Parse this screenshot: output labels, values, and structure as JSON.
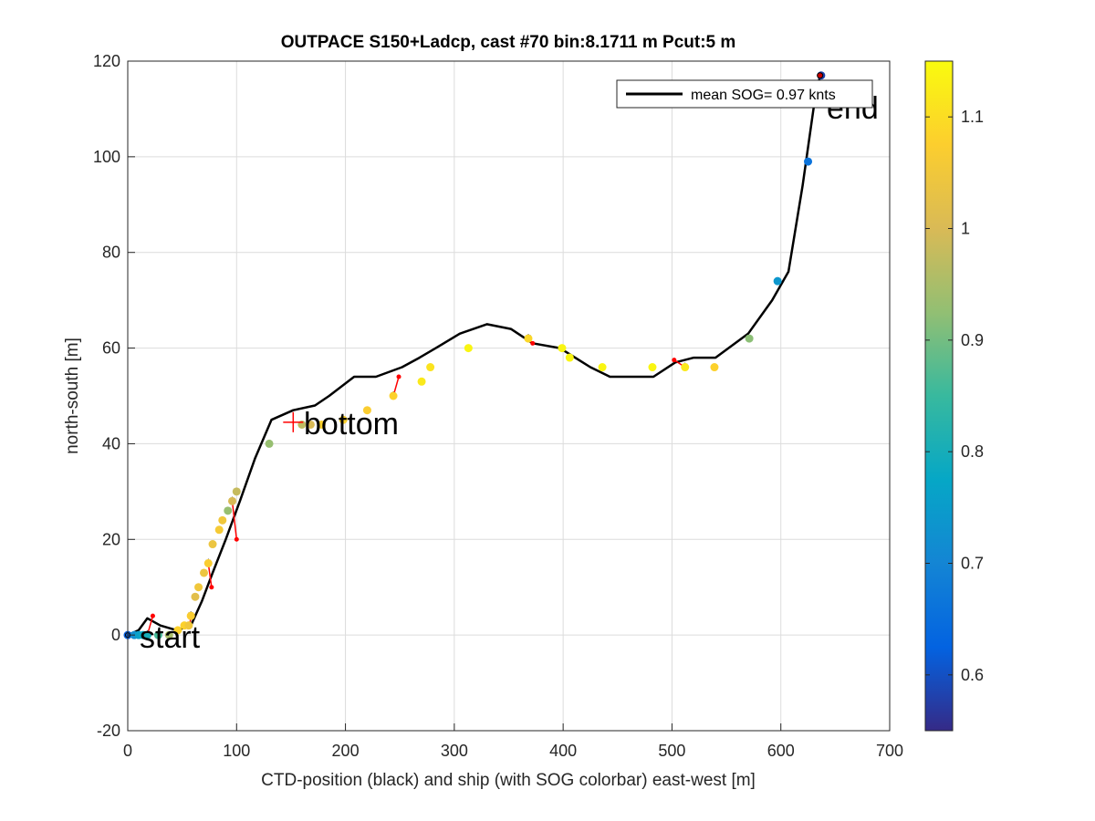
{
  "chart_data": {
    "type": "line",
    "title": "OUTPACE S150+Ladcp, cast #70 bin:8.1711 m  Pcut:5 m",
    "xlabel": "CTD-position (black) and ship (with SOG colorbar) east-west [m]",
    "ylabel": "north-south [m]",
    "xlim": [
      0,
      700
    ],
    "ylim": [
      -20,
      120
    ],
    "xticks": [
      0,
      100,
      200,
      300,
      400,
      500,
      600,
      700
    ],
    "yticks": [
      -20,
      0,
      20,
      40,
      60,
      80,
      100,
      120
    ],
    "grid": true,
    "legend": {
      "position": "top-right",
      "entries": [
        "mean SOG=  0.97 knts"
      ]
    },
    "colorbar": {
      "min": 0.55,
      "max": 1.15,
      "ticks": [
        0.6,
        0.7,
        0.8,
        0.9,
        1,
        1.1
      ],
      "tick_labels": [
        "0.6",
        "0.7",
        "0.8",
        "0.9",
        "1",
        "1.1"
      ],
      "colormap": "parula"
    },
    "ctd_track": {
      "color": "#000000",
      "x": [
        0,
        10,
        18,
        30,
        45,
        58,
        68,
        78,
        90,
        103,
        117,
        132,
        152,
        172,
        185,
        208,
        228,
        252,
        268,
        283,
        305,
        330,
        352,
        372,
        397,
        425,
        443,
        483,
        503,
        520,
        540,
        570,
        592,
        607,
        620,
        630,
        636
      ],
      "y": [
        0,
        1,
        3.5,
        2,
        1,
        2,
        7,
        13,
        20,
        28,
        37,
        45,
        47,
        48,
        50,
        54,
        54,
        56,
        58,
        60,
        63,
        65,
        64,
        61,
        60,
        56,
        54,
        54,
        57,
        58,
        58,
        63,
        70,
        76,
        94,
        110,
        117
      ]
    },
    "ship": {
      "x": [
        0,
        6,
        10,
        14,
        18,
        28,
        38,
        46,
        52,
        56,
        58,
        62,
        65,
        70,
        74,
        78,
        84,
        87,
        92,
        96,
        100,
        130,
        160,
        168,
        178,
        198,
        220,
        244,
        270,
        278,
        313,
        368,
        399,
        406,
        436,
        482,
        512,
        539,
        571,
        597,
        625,
        637
      ],
      "y": [
        0,
        0,
        0,
        0,
        0,
        0,
        0,
        1,
        2,
        2,
        4,
        8,
        10,
        13,
        15,
        19,
        22,
        24,
        26,
        28,
        30,
        40,
        44,
        44,
        44,
        45,
        47,
        50,
        53,
        56,
        60,
        62,
        60,
        58,
        56,
        56,
        56,
        56,
        62,
        74,
        99,
        117
      ],
      "sog": [
        0.62,
        0.72,
        0.76,
        0.78,
        0.8,
        0.86,
        0.95,
        1.08,
        1.08,
        1.05,
        1.07,
        1.02,
        1.05,
        1.04,
        1.07,
        1.04,
        1.06,
        1.05,
        0.93,
        1.0,
        0.98,
        0.93,
        0.97,
        1.0,
        1.08,
        1.08,
        1.07,
        1.08,
        1.12,
        1.11,
        1.14,
        1.09,
        1.14,
        1.14,
        1.14,
        1.14,
        1.12,
        1.08,
        0.92,
        0.74,
        0.66,
        0.58
      ]
    },
    "connectors": [
      [
        [
          23,
          4
        ],
        [
          18,
          0
        ]
      ],
      [
        [
          57,
          2
        ],
        [
          58,
          4
        ]
      ],
      [
        [
          77,
          10
        ],
        [
          74,
          15
        ]
      ],
      [
        [
          100,
          20
        ],
        [
          96,
          28
        ]
      ],
      [
        [
          249,
          54
        ],
        [
          244,
          50
        ]
      ],
      [
        [
          372,
          61
        ],
        [
          368,
          62
        ]
      ],
      [
        [
          502,
          57.5
        ],
        [
          512,
          56
        ]
      ]
    ],
    "markers": {
      "start": [
        0,
        0
      ],
      "bottom": [
        152,
        44.5
      ],
      "end": [
        636,
        117
      ]
    },
    "annotations": {
      "start": "start",
      "bottom": "bottom",
      "end": "end"
    },
    "colors": {
      "ctd": "#000000",
      "connector": "#ff0000",
      "axis": "#262626",
      "grid": "#dcdcdc"
    }
  }
}
